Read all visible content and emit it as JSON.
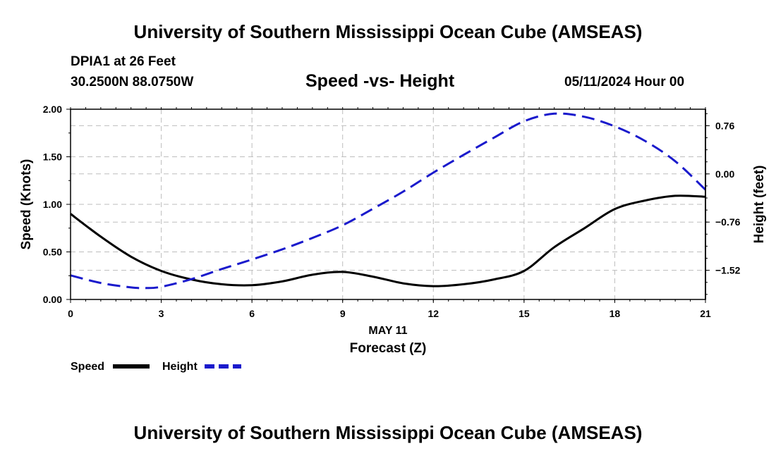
{
  "header": {
    "title": "University of Southern Mississippi Ocean Cube (AMSEAS)",
    "station": "DPIA1 at 26 Feet",
    "coords": "30.2500N  88.0750W",
    "subtitle": "Speed -vs- Height",
    "datetime": "05/11/2024 Hour 00"
  },
  "footer": {
    "title": "University of Southern Mississippi Ocean Cube (AMSEAS)"
  },
  "chart_data": {
    "type": "line",
    "title": "Speed -vs- Height",
    "xlabel_date": "MAY 11",
    "xlabel": "Forecast (Z)",
    "ylabel": "Speed (Knots)",
    "ylabel_right": "Height (feet)",
    "xlim": [
      0,
      21
    ],
    "ylim": [
      0,
      2.0
    ],
    "ylim_right": [
      -1.98,
      1.02
    ],
    "x_ticks": [
      "0",
      "3",
      "6",
      "9",
      "12",
      "15",
      "18",
      "21"
    ],
    "y_ticks": [
      "0.00",
      "0.50",
      "1.00",
      "1.50",
      "2.00"
    ],
    "y_right_ticks": [
      "-1.52",
      "-0.76",
      "0.00",
      "0.76"
    ],
    "grid": true,
    "series": [
      {
        "name": "Speed",
        "axis": "left",
        "color": "#000000",
        "style": "solid",
        "x": [
          0,
          1,
          2,
          3,
          4,
          5,
          6,
          7,
          8,
          9,
          10,
          11,
          12,
          13,
          14,
          15,
          16,
          17,
          18,
          19,
          20,
          21
        ],
        "values": [
          0.9,
          0.66,
          0.45,
          0.3,
          0.21,
          0.16,
          0.15,
          0.19,
          0.26,
          0.29,
          0.24,
          0.17,
          0.14,
          0.16,
          0.21,
          0.3,
          0.55,
          0.75,
          0.95,
          1.04,
          1.09,
          1.08
        ]
      },
      {
        "name": "Height",
        "axis": "right",
        "color": "#1a1acc",
        "style": "dashed",
        "x": [
          0,
          1,
          2,
          2.5,
          3,
          4,
          5,
          6,
          7,
          8,
          9,
          10,
          11,
          12,
          13,
          14,
          15,
          16,
          17,
          18,
          19,
          20,
          21
        ],
        "values": [
          -1.6,
          -1.72,
          -1.79,
          -1.8,
          -1.78,
          -1.66,
          -1.5,
          -1.35,
          -1.19,
          -1.01,
          -0.81,
          -0.55,
          -0.28,
          0.02,
          0.3,
          0.57,
          0.83,
          0.95,
          0.9,
          0.75,
          0.52,
          0.2,
          -0.25
        ]
      }
    ],
    "legend": [
      {
        "label": "Speed",
        "color": "#000000",
        "style": "solid"
      },
      {
        "label": "Height",
        "color": "#1a1acc",
        "style": "dashed"
      }
    ]
  }
}
